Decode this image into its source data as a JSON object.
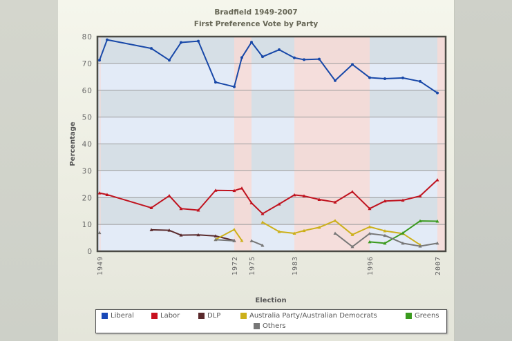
{
  "title": "Bradfield 1949-2007",
  "subtitle": "First Preference Vote by Party",
  "chart_data": {
    "type": "line",
    "title": "Bradfield 1949-2007",
    "subtitle": "First Preference Vote by Party",
    "xlabel": "Election",
    "ylabel": "Percentage",
    "ylim": [
      0,
      80
    ],
    "yticks": [
      0,
      10,
      20,
      30,
      40,
      50,
      60,
      70,
      80
    ],
    "xtick_labels": [
      "1949",
      "1972",
      "1975",
      "1983",
      "1996",
      "2007"
    ],
    "grid": true,
    "legend_position": "bottom",
    "x": [
      1949,
      1951,
      1958,
      1961,
      1963,
      1966,
      1969,
      1972,
      1974,
      1975,
      1977,
      1980,
      1983,
      1984,
      1987,
      1990,
      1993,
      1996,
      1998,
      2001,
      2004,
      2007
    ],
    "series": [
      {
        "name": "Liberal",
        "color": "#1848a8",
        "values": [
          71.2,
          78.8,
          75.6,
          71.2,
          77.8,
          78.3,
          63.0,
          61.3,
          72.2,
          77.9,
          72.5,
          75.1,
          72.1,
          71.4,
          71.6,
          63.6,
          69.6,
          64.7,
          64.3,
          64.6,
          63.3,
          59.0
        ]
      },
      {
        "name": "Labor",
        "color": "#c0121e",
        "values": [
          21.7,
          21.1,
          16.2,
          20.7,
          15.9,
          15.3,
          22.7,
          22.6,
          23.5,
          18.0,
          14.0,
          17.6,
          21.0,
          20.6,
          19.3,
          18.3,
          22.2,
          15.9,
          18.7,
          19.0,
          20.6,
          26.6
        ]
      },
      {
        "name": "DLP",
        "color": "#5a2a2c",
        "values": [
          null,
          null,
          8.0,
          7.8,
          6.0,
          6.1,
          5.7,
          4.0,
          null,
          null,
          null,
          null,
          null,
          null,
          null,
          null,
          null,
          null,
          null,
          null,
          null,
          null
        ]
      },
      {
        "name": "Australia Party/Australian Democrats",
        "color": "#ccb01a",
        "values": [
          null,
          null,
          null,
          null,
          null,
          null,
          4.4,
          8.1,
          4.0,
          null,
          10.8,
          7.3,
          6.7,
          7.7,
          8.9,
          11.4,
          6.2,
          9.1,
          7.6,
          6.6,
          2.4,
          null
        ]
      },
      {
        "name": "Greens",
        "color": "#3a9a1e",
        "values": [
          null,
          null,
          null,
          null,
          null,
          null,
          null,
          null,
          null,
          null,
          null,
          null,
          null,
          null,
          null,
          null,
          null,
          3.5,
          3.0,
          6.8,
          11.3,
          11.2
        ]
      },
      {
        "name": "Others",
        "color": "#777777",
        "values": [
          6.9,
          null,
          null,
          null,
          null,
          null,
          4.3,
          3.9,
          null,
          3.9,
          2.2,
          null,
          null,
          null,
          null,
          6.7,
          1.7,
          6.6,
          5.9,
          3.0,
          1.9,
          3.0
        ]
      }
    ],
    "background_bands": [
      {
        "from": 1949,
        "to": 1949.3,
        "party": "Labor government",
        "color": "#f8e0e0"
      },
      {
        "from": 1949.3,
        "to": 1972,
        "party": "Coalition government",
        "color": "#e2eaf6"
      },
      {
        "from": 1972,
        "to": 1975,
        "party": "Labor government",
        "color": "#f8e0e0"
      },
      {
        "from": 1975,
        "to": 1983,
        "party": "Coalition government",
        "color": "#e2eaf6"
      },
      {
        "from": 1983,
        "to": 1996,
        "party": "Labor government",
        "color": "#f8e0e0"
      },
      {
        "from": 1996,
        "to": 2007,
        "party": "Coalition government",
        "color": "#e2eaf6"
      },
      {
        "from": 2007,
        "to": 2008,
        "party": "Labor government",
        "color": "#f8e0e0"
      }
    ]
  },
  "axis": {
    "xlabel": "Election",
    "ylabel": "Percentage"
  },
  "legend": {
    "items": [
      {
        "label": "Liberal",
        "color": "#1848b8"
      },
      {
        "label": "Labor",
        "color": "#c8101e"
      },
      {
        "label": "DLP",
        "color": "#5a2a2c"
      },
      {
        "label": "Australia Party/Australian Democrats",
        "color": "#ccb01a"
      },
      {
        "label": "Greens",
        "color": "#3a9a1e"
      },
      {
        "label": "Others",
        "color": "#777777"
      }
    ]
  }
}
